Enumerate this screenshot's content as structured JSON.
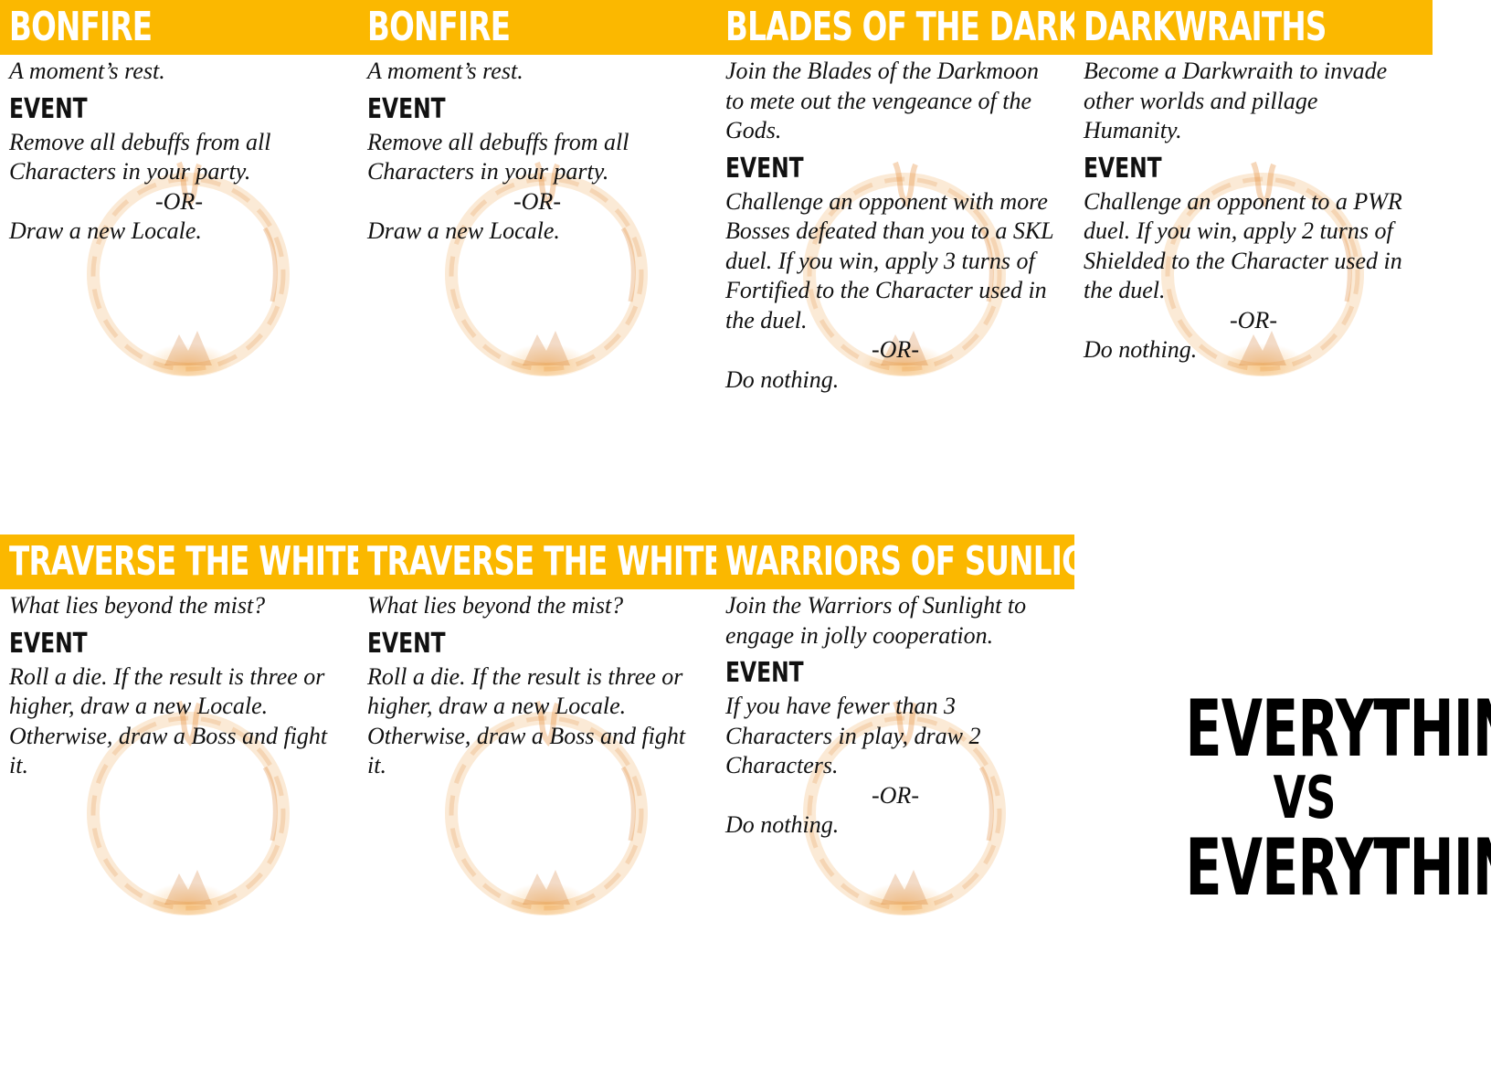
{
  "cards": [
    {
      "title": "BONFIRE",
      "flavor": [
        "A moment’s rest."
      ],
      "event_label": "EVENT",
      "effect": [
        "Remove all debuffs from all",
        "Characters in your party."
      ],
      "or": "-OR-",
      "alt": [
        "Draw a new Locale."
      ]
    },
    {
      "title": "BONFIRE",
      "flavor": [
        "A moment’s rest."
      ],
      "event_label": "EVENT",
      "effect": [
        "Remove all debuffs from all",
        "Characters in your party."
      ],
      "or": "-OR-",
      "alt": [
        "Draw a new Locale."
      ]
    },
    {
      "title": "BLADES OF THE DARKMOON",
      "flavor": [
        "Join the Blades of the Darkmoon",
        "to mete out the vengeance of the",
        "Gods."
      ],
      "event_label": "EVENT",
      "effect": [
        "Challenge an opponent with more",
        "Bosses defeated than you to a SKL",
        "duel. If you win, apply 3 turns of",
        "Fortified to the Character used in",
        "the duel."
      ],
      "or": "-OR-",
      "alt": [
        "Do nothing."
      ]
    },
    {
      "title": "DARKWRAITHS",
      "flavor": [
        "Become a Darkwraith to invade",
        "other worlds and pillage",
        "Humanity."
      ],
      "event_label": "EVENT",
      "effect": [
        "Challenge an opponent to a PWR",
        "duel. If you win, apply 2 turns of",
        "Shielded to the Character used in",
        "the duel."
      ],
      "or": "-OR-",
      "alt": [
        "Do nothing."
      ]
    },
    {
      "title": "TRAVERSE THE WHITE LIGHT",
      "flavor": [
        "What lies beyond the mist?"
      ],
      "event_label": "EVENT",
      "effect": [
        "Roll a die. If the result is three or",
        "higher, draw a new Locale.",
        "Otherwise, draw a Boss and fight",
        "it."
      ],
      "or": "",
      "alt": []
    },
    {
      "title": "TRAVERSE THE WHITE LIGHT",
      "flavor": [
        "What lies beyond the mist?"
      ],
      "event_label": "EVENT",
      "effect": [
        "Roll a die. If the result is three or",
        "higher, draw a new Locale.",
        "Otherwise, draw a Boss and fight",
        "it."
      ],
      "or": "",
      "alt": []
    },
    {
      "title": "WARRIORS OF SUNLIGHT",
      "flavor": [
        "Join the Warriors of Sunlight to",
        "engage in jolly cooperation."
      ],
      "event_label": "EVENT",
      "effect": [
        "If you have fewer than 3",
        "Characters in play, draw 2",
        "Characters."
      ],
      "or": "-OR-",
      "alt": [
        "Do nothing."
      ]
    }
  ],
  "logo": {
    "line1": "EVERYTHING",
    "line2": "VS",
    "line3": "EVERYTHING"
  },
  "colors": {
    "title_bar": "#fbb800",
    "title_text": "#ffffff",
    "body_text": "#111111"
  },
  "icons": {
    "watermark": "darksign-ring-icon"
  }
}
